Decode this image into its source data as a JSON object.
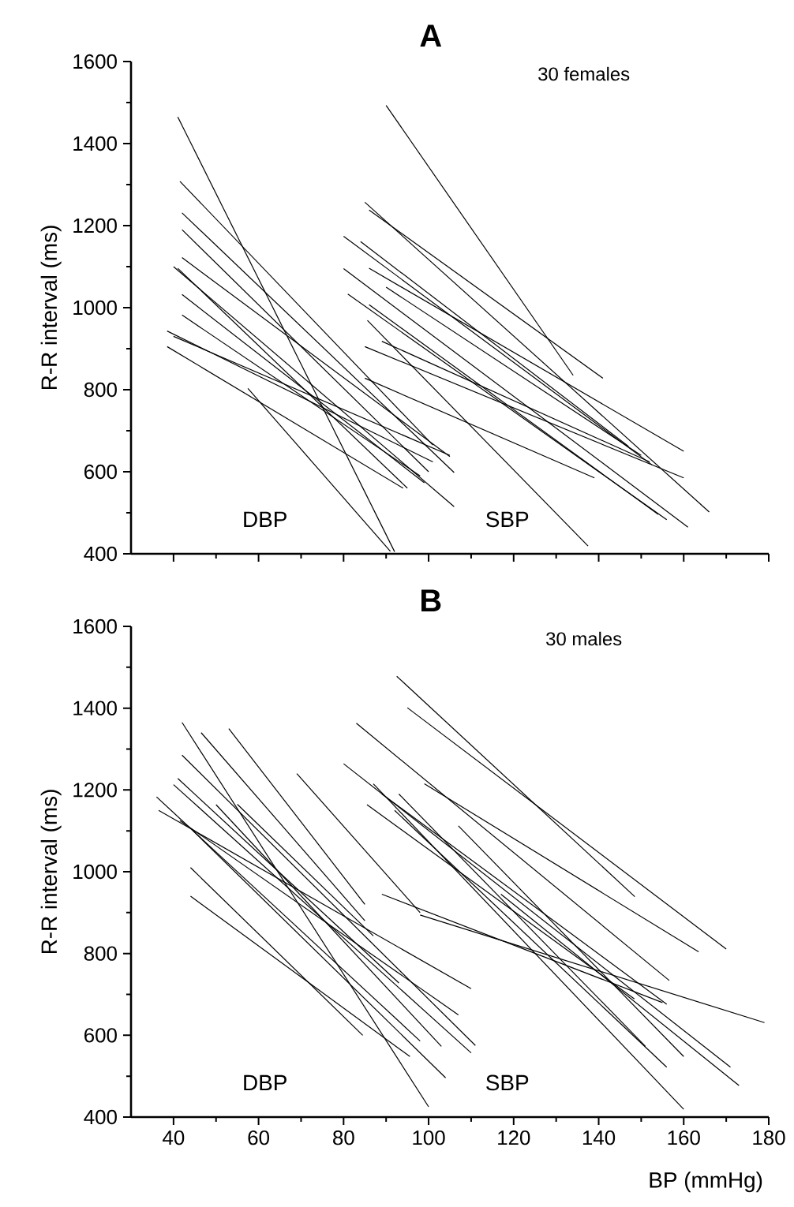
{
  "chart_data": [
    {
      "type": "line",
      "title": "A",
      "ylabel": "R-R interval (ms)",
      "annotations": [
        "30 females",
        "DBP",
        "SBP"
      ],
      "xlim": [
        30,
        180
      ],
      "ylim": [
        400,
        1600
      ],
      "xticks": [
        40,
        60,
        80,
        100,
        120,
        140,
        160,
        180
      ],
      "yticks": [
        400,
        600,
        800,
        1000,
        1200,
        1400,
        1600
      ],
      "tick_labels": "y",
      "marker": "none",
      "line_style": "solid",
      "series": [
        {
          "color": "#000000",
          "x": [
            40,
            106
          ],
          "values": [
            1100,
            515
          ]
        },
        {
          "color": "#000000",
          "x": [
            41,
            92
          ],
          "values": [
            1465,
            405
          ]
        },
        {
          "color": "#000000",
          "x": [
            41.5,
            101
          ],
          "values": [
            1308,
            665
          ]
        },
        {
          "color": "#000000",
          "x": [
            42,
            106
          ],
          "values": [
            1231,
            598
          ]
        },
        {
          "color": "#000000",
          "x": [
            42,
            100
          ],
          "values": [
            1190,
            600
          ]
        },
        {
          "color": "#000000",
          "x": [
            42,
            105
          ],
          "values": [
            1122,
            637
          ]
        },
        {
          "color": "#000000",
          "x": [
            42,
            99
          ],
          "values": [
            1032,
            573
          ]
        },
        {
          "color": "#000000",
          "x": [
            41,
            95
          ],
          "values": [
            1096,
            560
          ]
        },
        {
          "color": "#000000",
          "x": [
            42,
            98
          ],
          "values": [
            982,
            590
          ]
        },
        {
          "color": "#000000",
          "x": [
            38.5,
            101
          ],
          "values": [
            943,
            624
          ]
        },
        {
          "color": "#000000",
          "x": [
            38.5,
            94
          ],
          "values": [
            905,
            560
          ]
        },
        {
          "color": "#000000",
          "x": [
            40,
            105
          ],
          "values": [
            930,
            640
          ]
        },
        {
          "color": "#000000",
          "x": [
            57.5,
            91
          ],
          "values": [
            803,
            406
          ]
        },
        {
          "color": "#000000",
          "x": [
            80,
            161
          ],
          "values": [
            1095,
            465
          ]
        },
        {
          "color": "#000000",
          "x": [
            90,
            134
          ],
          "values": [
            1493,
            835
          ]
        },
        {
          "color": "#000000",
          "x": [
            85,
            166
          ],
          "values": [
            1257,
            502
          ]
        },
        {
          "color": "#000000",
          "x": [
            80,
            152.5
          ],
          "values": [
            1174,
            617
          ]
        },
        {
          "color": "#000000",
          "x": [
            86,
            141
          ],
          "values": [
            1238,
            828
          ]
        },
        {
          "color": "#000000",
          "x": [
            85.6,
            137.5
          ],
          "values": [
            969,
            419
          ]
        },
        {
          "color": "#000000",
          "x": [
            85,
            160
          ],
          "values": [
            905,
            585
          ]
        },
        {
          "color": "#000000",
          "x": [
            85,
            139
          ],
          "values": [
            828,
            585
          ]
        },
        {
          "color": "#000000",
          "x": [
            86,
            160
          ],
          "values": [
            1096,
            650
          ]
        },
        {
          "color": "#000000",
          "x": [
            81,
            156
          ],
          "values": [
            1033,
            483
          ]
        },
        {
          "color": "#000000",
          "x": [
            86,
            154
          ],
          "values": [
            1007,
            496
          ]
        },
        {
          "color": "#000000",
          "x": [
            90,
            150
          ],
          "values": [
            1050,
            640
          ]
        },
        {
          "color": "#000000",
          "x": [
            89,
            152
          ],
          "values": [
            918,
            624
          ]
        },
        {
          "color": "#000000",
          "x": [
            84,
            147
          ],
          "values": [
            1161,
            662
          ]
        }
      ]
    },
    {
      "type": "line",
      "title": "B",
      "xlabel": "BP (mmHg)",
      "ylabel": "R-R interval (ms)",
      "annotations": [
        "30 males",
        "DBP",
        "SBP"
      ],
      "xlim": [
        30,
        180
      ],
      "ylim": [
        400,
        1600
      ],
      "xticks": [
        40,
        60,
        80,
        100,
        120,
        140,
        160,
        180
      ],
      "yticks": [
        400,
        600,
        800,
        1000,
        1200,
        1400,
        1600
      ],
      "marker": "none",
      "line_style": "solid",
      "series": [
        {
          "color": "#000000",
          "x": [
            40,
            110
          ],
          "values": [
            1213,
            557
          ]
        },
        {
          "color": "#000000",
          "x": [
            42,
            100
          ],
          "values": [
            1365,
            425
          ]
        },
        {
          "color": "#000000",
          "x": [
            46.5,
            85
          ],
          "values": [
            1340,
            880
          ]
        },
        {
          "color": "#000000",
          "x": [
            53,
            85
          ],
          "values": [
            1350,
            920
          ]
        },
        {
          "color": "#000000",
          "x": [
            42,
            111
          ],
          "values": [
            1285,
            575
          ]
        },
        {
          "color": "#000000",
          "x": [
            36,
            98
          ],
          "values": [
            1183,
            586
          ]
        },
        {
          "color": "#000000",
          "x": [
            36.5,
            110
          ],
          "values": [
            1150,
            714
          ]
        },
        {
          "color": "#000000",
          "x": [
            44,
            95.6
          ],
          "values": [
            940,
            548
          ]
        },
        {
          "color": "#000000",
          "x": [
            44,
            84.5
          ],
          "values": [
            1010,
            600
          ]
        },
        {
          "color": "#000000",
          "x": [
            69,
            98
          ],
          "values": [
            1240,
            900
          ]
        },
        {
          "color": "#000000",
          "x": [
            44.6,
            104
          ],
          "values": [
            1100,
            496
          ]
        },
        {
          "color": "#000000",
          "x": [
            41,
            93
          ],
          "values": [
            1228,
            728
          ]
        },
        {
          "color": "#000000",
          "x": [
            50,
            103
          ],
          "values": [
            1164,
            573
          ]
        },
        {
          "color": "#000000",
          "x": [
            41.5,
            107
          ],
          "values": [
            1125,
            650
          ]
        },
        {
          "color": "#000000",
          "x": [
            55,
            87
          ],
          "values": [
            1165,
            843
          ]
        },
        {
          "color": "#000000",
          "x": [
            80,
            171
          ],
          "values": [
            1264,
            522
          ]
        },
        {
          "color": "#000000",
          "x": [
            92.5,
            148.5
          ],
          "values": [
            1478,
            939
          ]
        },
        {
          "color": "#000000",
          "x": [
            95,
            170
          ],
          "values": [
            1401,
            811
          ]
        },
        {
          "color": "#000000",
          "x": [
            83,
            156.6
          ],
          "values": [
            1363,
            734
          ]
        },
        {
          "color": "#000000",
          "x": [
            87,
            160
          ],
          "values": [
            1215,
            419
          ]
        },
        {
          "color": "#000000",
          "x": [
            89,
            156
          ],
          "values": [
            1190,
            676
          ]
        },
        {
          "color": "#000000",
          "x": [
            89,
            155
          ],
          "values": [
            945,
            680
          ]
        },
        {
          "color": "#000000",
          "x": [
            98,
            179
          ],
          "values": [
            894,
            631
          ]
        },
        {
          "color": "#000000",
          "x": [
            92,
            156
          ],
          "values": [
            1150,
            522
          ]
        },
        {
          "color": "#000000",
          "x": [
            93,
            151
          ],
          "values": [
            1190,
            573
          ]
        },
        {
          "color": "#000000",
          "x": [
            99,
            163.5
          ],
          "values": [
            1215,
            804
          ]
        },
        {
          "color": "#000000",
          "x": [
            117,
            173
          ],
          "values": [
            945,
            477
          ]
        },
        {
          "color": "#000000",
          "x": [
            107,
            160
          ],
          "values": [
            1112,
            548
          ]
        },
        {
          "color": "#000000",
          "x": [
            85.5,
            148.4
          ],
          "values": [
            1164,
            689
          ]
        }
      ]
    }
  ]
}
